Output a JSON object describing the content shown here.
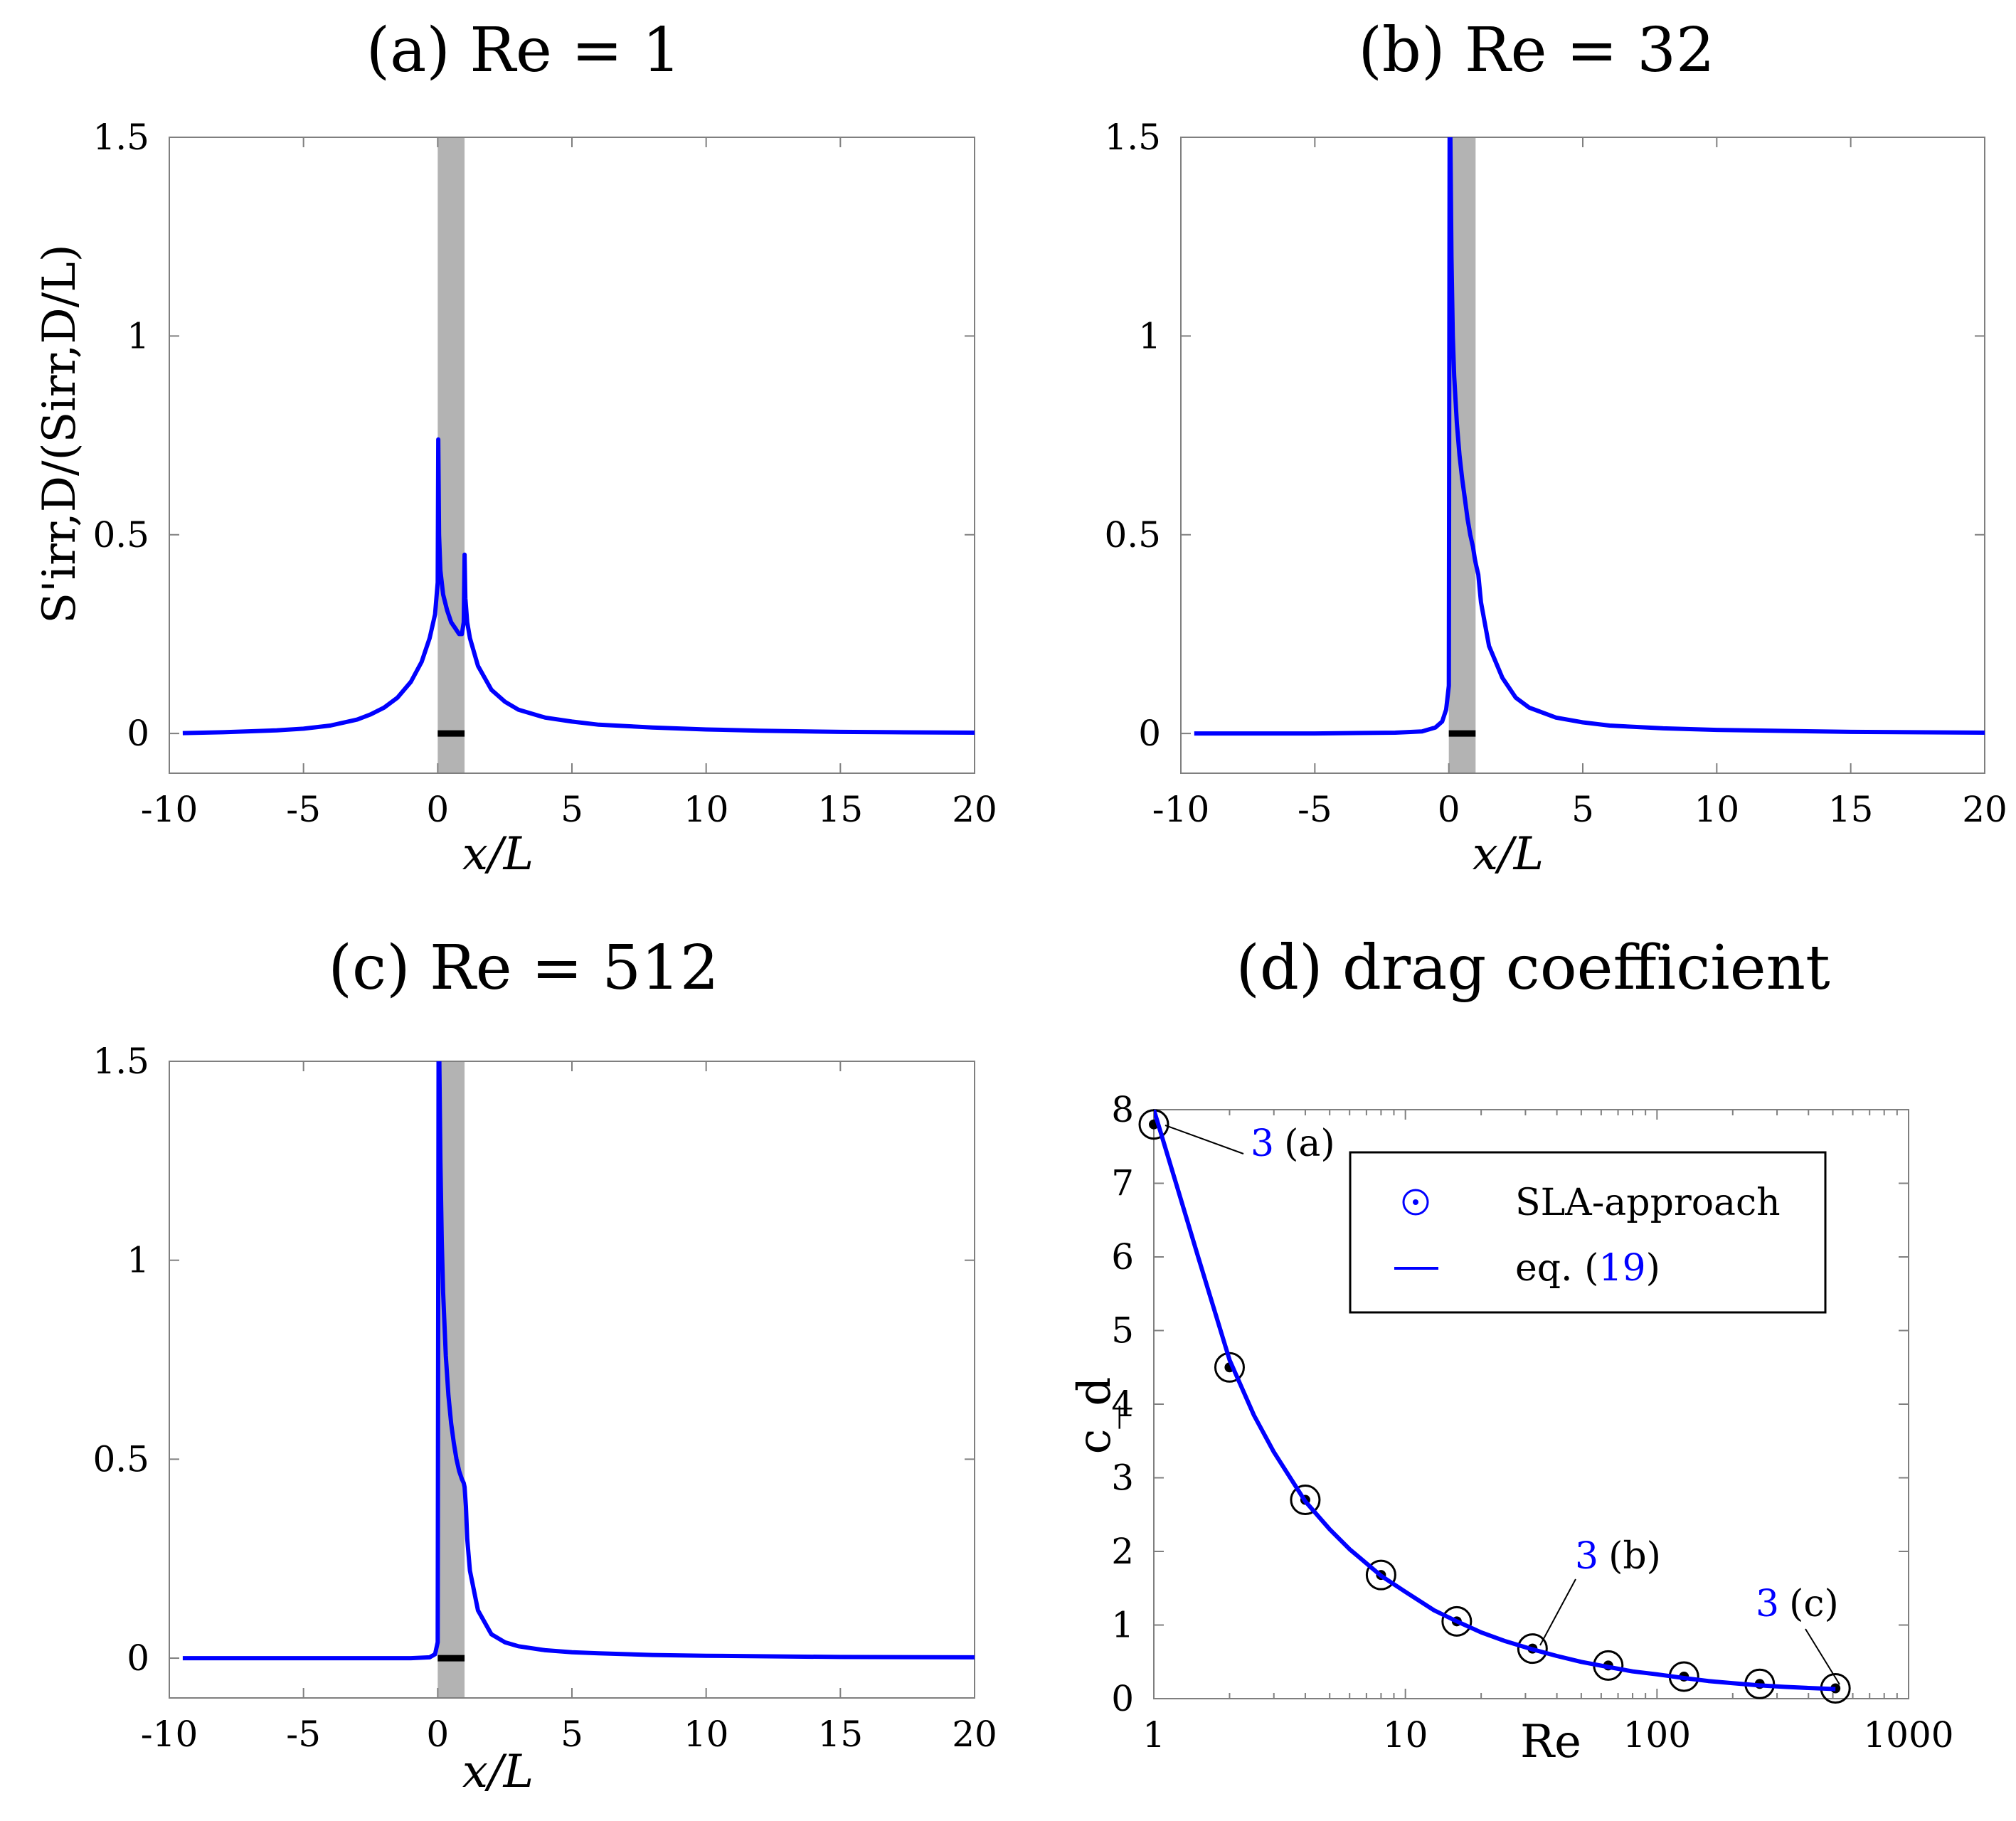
{
  "chart_data": [
    {
      "type": "line",
      "id": "a",
      "title": "(a) Re = 1",
      "xlabel": "x/L",
      "ylabel": "S'irr,D/(Sirr,D/L)",
      "xlim": [
        -10,
        20
      ],
      "ylim": [
        -0.1,
        1.5
      ],
      "xticks": [
        -10,
        -5,
        0,
        5,
        10,
        15,
        20
      ],
      "xtick_labels": [
        "-10",
        "-5",
        "0",
        "5",
        "10",
        "15",
        "20"
      ],
      "yticks": [
        0,
        0.5,
        1,
        1.5
      ],
      "ytick_labels": [
        "0",
        "0.5",
        "1",
        "1.5"
      ],
      "shaded_region": [
        0,
        1
      ],
      "body_bar": [
        0,
        1
      ],
      "series": [
        {
          "name": "S'irr,D",
          "color": "#0000ff",
          "x": [
            -9.5,
            -8,
            -6,
            -5,
            -4,
            -3,
            -2.5,
            -2,
            -1.5,
            -1,
            -0.6,
            -0.3,
            -0.1,
            0.0,
            0.02,
            0.05,
            0.1,
            0.2,
            0.35,
            0.5,
            0.65,
            0.8,
            0.9,
            0.97,
            1.0,
            1.03,
            1.1,
            1.2,
            1.5,
            2,
            2.5,
            3,
            4,
            5,
            6,
            8,
            10,
            12,
            15,
            17,
            20
          ],
          "y": [
            0.001,
            0.003,
            0.008,
            0.012,
            0.02,
            0.035,
            0.048,
            0.065,
            0.09,
            0.13,
            0.18,
            0.24,
            0.3,
            0.38,
            0.74,
            0.5,
            0.41,
            0.35,
            0.31,
            0.28,
            0.265,
            0.25,
            0.25,
            0.28,
            0.45,
            0.34,
            0.28,
            0.24,
            0.17,
            0.11,
            0.08,
            0.06,
            0.04,
            0.03,
            0.022,
            0.015,
            0.01,
            0.007,
            0.004,
            0.003,
            0.002
          ]
        }
      ]
    },
    {
      "type": "line",
      "id": "b",
      "title": "(b) Re = 32",
      "xlabel": "x/L",
      "ylabel": "",
      "xlim": [
        -10,
        20
      ],
      "ylim": [
        -0.1,
        1.5
      ],
      "xticks": [
        -10,
        -5,
        0,
        5,
        10,
        15,
        20
      ],
      "xtick_labels": [
        "-10",
        "-5",
        "0",
        "5",
        "10",
        "15",
        "20"
      ],
      "yticks": [
        0,
        0.5,
        1,
        1.5
      ],
      "ytick_labels": [
        "0",
        "0.5",
        "1",
        "1.5"
      ],
      "shaded_region": [
        0,
        1
      ],
      "body_bar": [
        0,
        1
      ],
      "series": [
        {
          "name": "S'irr,D",
          "color": "#0000ff",
          "x": [
            -9.5,
            -5,
            -2,
            -1,
            -0.5,
            -0.25,
            -0.1,
            0.0,
            0.03,
            0.06,
            0.1,
            0.15,
            0.2,
            0.3,
            0.4,
            0.5,
            0.6,
            0.7,
            0.8,
            0.9,
            0.97,
            1.0,
            1.03,
            1.1,
            1.2,
            1.5,
            2,
            2.5,
            3,
            4,
            5,
            6,
            8,
            10,
            15,
            20
          ],
          "y": [
            0.0,
            0.0,
            0.002,
            0.005,
            0.015,
            0.03,
            0.06,
            0.12,
            1.5,
            1.5,
            1.2,
            1.0,
            0.9,
            0.78,
            0.7,
            0.64,
            0.59,
            0.54,
            0.5,
            0.47,
            0.44,
            0.43,
            0.42,
            0.4,
            0.33,
            0.22,
            0.14,
            0.09,
            0.065,
            0.04,
            0.028,
            0.02,
            0.013,
            0.009,
            0.004,
            0.002
          ]
        }
      ]
    },
    {
      "type": "line",
      "id": "c",
      "title": "(c) Re = 512",
      "xlabel": "x/L",
      "ylabel": "",
      "xlim": [
        -10,
        20
      ],
      "ylim": [
        -0.1,
        1.5
      ],
      "xticks": [
        -10,
        -5,
        0,
        5,
        10,
        15,
        20
      ],
      "xtick_labels": [
        "-10",
        "-5",
        "0",
        "5",
        "10",
        "15",
        "20"
      ],
      "yticks": [
        0,
        0.5,
        1,
        1.5
      ],
      "ytick_labels": [
        "0",
        "0.5",
        "1",
        "1.5"
      ],
      "shaded_region": [
        0,
        1
      ],
      "body_bar": [
        0,
        1
      ],
      "series": [
        {
          "name": "S'irr,D",
          "color": "#0000ff",
          "x": [
            -9.5,
            -5,
            -1,
            -0.3,
            -0.1,
            0.0,
            0.03,
            0.06,
            0.1,
            0.15,
            0.2,
            0.3,
            0.4,
            0.5,
            0.6,
            0.7,
            0.8,
            0.9,
            0.97,
            1.0,
            1.05,
            1.1,
            1.2,
            1.5,
            2,
            2.5,
            3,
            4,
            5,
            6,
            8,
            10,
            15,
            20
          ],
          "y": [
            0.0,
            0.0,
            0.0,
            0.002,
            0.01,
            0.04,
            1.5,
            1.5,
            1.25,
            1.05,
            0.92,
            0.76,
            0.66,
            0.59,
            0.54,
            0.5,
            0.47,
            0.45,
            0.44,
            0.43,
            0.38,
            0.3,
            0.22,
            0.12,
            0.06,
            0.04,
            0.03,
            0.02,
            0.015,
            0.012,
            0.008,
            0.006,
            0.003,
            0.002
          ]
        }
      ]
    },
    {
      "type": "line",
      "id": "d",
      "title": "(d) drag coefficient",
      "xlabel": "Re",
      "ylabel": "c_d",
      "xscale": "log",
      "xlim": [
        1,
        1000
      ],
      "ylim": [
        0,
        8
      ],
      "xticks": [
        1,
        10,
        100,
        1000
      ],
      "xtick_labels": [
        "1",
        "10",
        "100",
        "1000"
      ],
      "yticks": [
        0,
        1,
        2,
        3,
        4,
        5,
        6,
        7,
        8
      ],
      "ytick_labels": [
        "0",
        "1",
        "2",
        "3",
        "4",
        "5",
        "6",
        "7",
        "8"
      ],
      "legend": {
        "position": "upper-right",
        "entries": [
          {
            "label": "SLA-approach",
            "marker": "circle-dot"
          },
          {
            "label_prefix": "eq. (",
            "label_ref": "19",
            "label_suffix": ")",
            "marker": "line"
          }
        ]
      },
      "series": [
        {
          "name": "SLA-approach",
          "type": "scatter",
          "x": [
            1,
            2,
            4,
            8,
            16,
            32,
            64,
            128,
            256,
            512
          ],
          "y": [
            7.8,
            4.5,
            2.7,
            1.68,
            1.05,
            0.68,
            0.45,
            0.3,
            0.2,
            0.14
          ]
        },
        {
          "name": "eq. (19)",
          "type": "line",
          "color": "#0000ff",
          "x": [
            1,
            1.25,
            1.5,
            2,
            2.5,
            3,
            4,
            5,
            6,
            8,
            10,
            13,
            16,
            20,
            25,
            32,
            40,
            50,
            64,
            80,
            100,
            128,
            160,
            200,
            256,
            320,
            400,
            512
          ],
          "y": [
            8.0,
            6.9,
            6.0,
            4.6,
            3.85,
            3.35,
            2.68,
            2.3,
            2.03,
            1.67,
            1.45,
            1.2,
            1.05,
            0.9,
            0.78,
            0.67,
            0.58,
            0.5,
            0.43,
            0.37,
            0.33,
            0.28,
            0.24,
            0.21,
            0.18,
            0.16,
            0.145,
            0.13
          ]
        }
      ],
      "annotations": [
        {
          "ref": "3",
          "label": "(a)",
          "target_x": 1,
          "target_y": 7.8
        },
        {
          "ref": "3",
          "label": "(b)",
          "target_x": 32,
          "target_y": 0.68
        },
        {
          "ref": "3",
          "label": "(c)",
          "target_x": 512,
          "target_y": 0.14
        }
      ]
    }
  ]
}
